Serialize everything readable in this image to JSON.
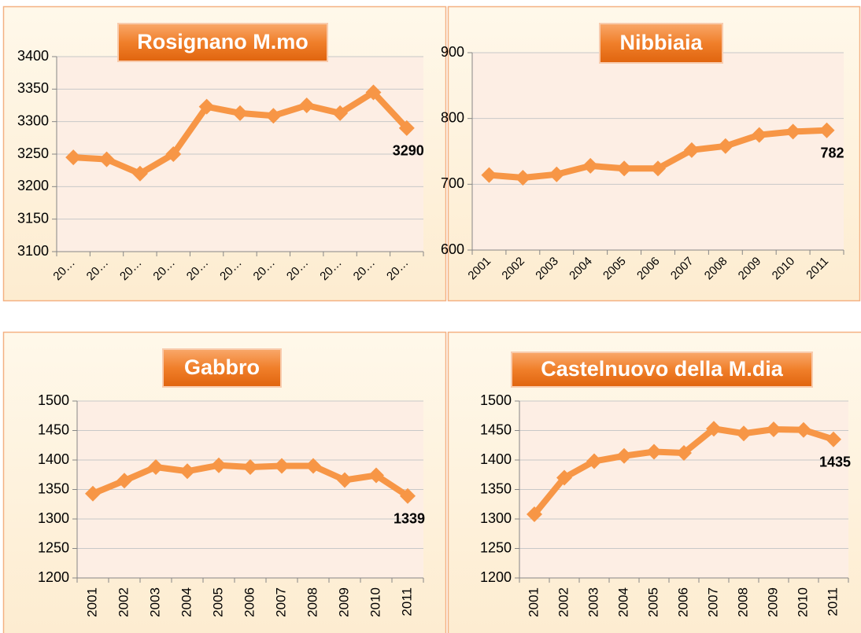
{
  "chart_data": [
    {
      "type": "line",
      "title": "Rosignano M.mo",
      "categories": [
        "20…",
        "20…",
        "20…",
        "20…",
        "20…",
        "20…",
        "20…",
        "20…",
        "20…",
        "20…",
        "20…"
      ],
      "values": [
        3245,
        3242,
        3220,
        3250,
        3323,
        3313,
        3309,
        3325,
        3313,
        3345,
        3290
      ],
      "value_labels": [
        null,
        null,
        null,
        null,
        null,
        null,
        null,
        null,
        null,
        null,
        "3290"
      ],
      "color": "#f79646",
      "ylim": [
        3100,
        3400
      ],
      "yticks": [
        3100,
        3150,
        3200,
        3250,
        3300,
        3350,
        3400
      ],
      "grid": true
    },
    {
      "type": "line",
      "title": "Nibbiaia",
      "categories": [
        "2001",
        "2002",
        "2003",
        "2004",
        "2005",
        "2006",
        "2007",
        "2008",
        "2009",
        "2010",
        "2011"
      ],
      "values": [
        714,
        710,
        715,
        728,
        724,
        724,
        752,
        758,
        775,
        780,
        782
      ],
      "value_labels": [
        null,
        null,
        null,
        null,
        null,
        null,
        null,
        null,
        null,
        null,
        "782"
      ],
      "color": "#f79646",
      "ylim": [
        600,
        900
      ],
      "yticks": [
        600,
        700,
        800,
        900
      ],
      "grid": true
    },
    {
      "type": "line",
      "title": "Gabbro",
      "categories": [
        "2001",
        "2002",
        "2003",
        "2004",
        "2005",
        "2006",
        "2007",
        "2008",
        "2009",
        "2010",
        "2011"
      ],
      "values": [
        1343,
        1365,
        1388,
        1381,
        1391,
        1388,
        1390,
        1390,
        1366,
        1374,
        1339
      ],
      "value_labels": [
        null,
        null,
        null,
        null,
        null,
        null,
        null,
        null,
        null,
        null,
        "1339"
      ],
      "color": "#f79646",
      "ylim": [
        1200,
        1500
      ],
      "yticks": [
        1200,
        1250,
        1300,
        1350,
        1400,
        1450,
        1500
      ],
      "grid": true
    },
    {
      "type": "line",
      "title": "Castelnuovo della M.dia",
      "categories": [
        "2001",
        "2002",
        "2003",
        "2004",
        "2005",
        "2006",
        "2007",
        "2008",
        "2009",
        "2010",
        "2011"
      ],
      "values": [
        1308,
        1370,
        1398,
        1407,
        1414,
        1412,
        1453,
        1445,
        1452,
        1451,
        1435
      ],
      "value_labels": [
        null,
        null,
        null,
        null,
        null,
        null,
        null,
        null,
        null,
        null,
        "1435"
      ],
      "color": "#f79646",
      "ylim": [
        1200,
        1500
      ],
      "yticks": [
        1200,
        1250,
        1300,
        1350,
        1400,
        1450,
        1500
      ],
      "grid": true
    }
  ]
}
